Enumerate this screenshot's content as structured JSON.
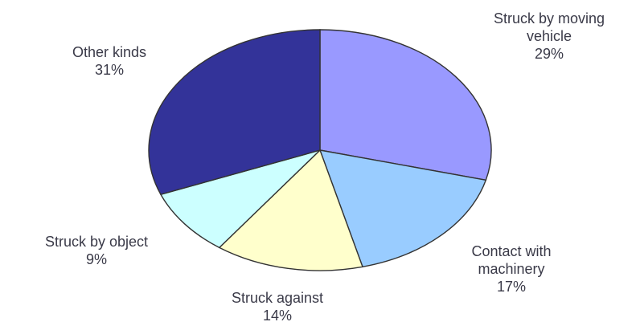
{
  "chart_data": {
    "type": "pie",
    "title": "",
    "slices": [
      {
        "label_lines": [
          "Struck by moving",
          "vehicle"
        ],
        "value": 29,
        "value_label": "29%",
        "color": "#9999ff"
      },
      {
        "label_lines": [
          "Contact with",
          "machinery"
        ],
        "value": 17,
        "value_label": "17%",
        "color": "#99ccff"
      },
      {
        "label_lines": [
          "Struck against"
        ],
        "value": 14,
        "value_label": "14%",
        "color": "#ffffcc"
      },
      {
        "label_lines": [
          "Struck by object"
        ],
        "value": 9,
        "value_label": "9%",
        "color": "#ccffff"
      },
      {
        "label_lines": [
          "Other kinds"
        ],
        "value": 31,
        "value_label": "31%",
        "color": "#333399"
      }
    ],
    "start_angle_deg": 0,
    "direction": "clockwise",
    "legend": "none",
    "slice_outline_color": "#333333"
  }
}
